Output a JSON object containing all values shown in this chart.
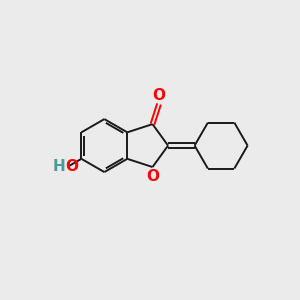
{
  "background_color": "#ebebeb",
  "bond_color": "#1a1a1a",
  "bond_width": 1.4,
  "o_color": "#ff0000",
  "ho_h_color": "#4a9a9a",
  "ho_o_color": "#ff0000",
  "font_size": 11,
  "figsize": [
    3.0,
    3.0
  ],
  "dpi": 100,
  "xlim": [
    0,
    10
  ],
  "ylim": [
    0,
    10
  ]
}
